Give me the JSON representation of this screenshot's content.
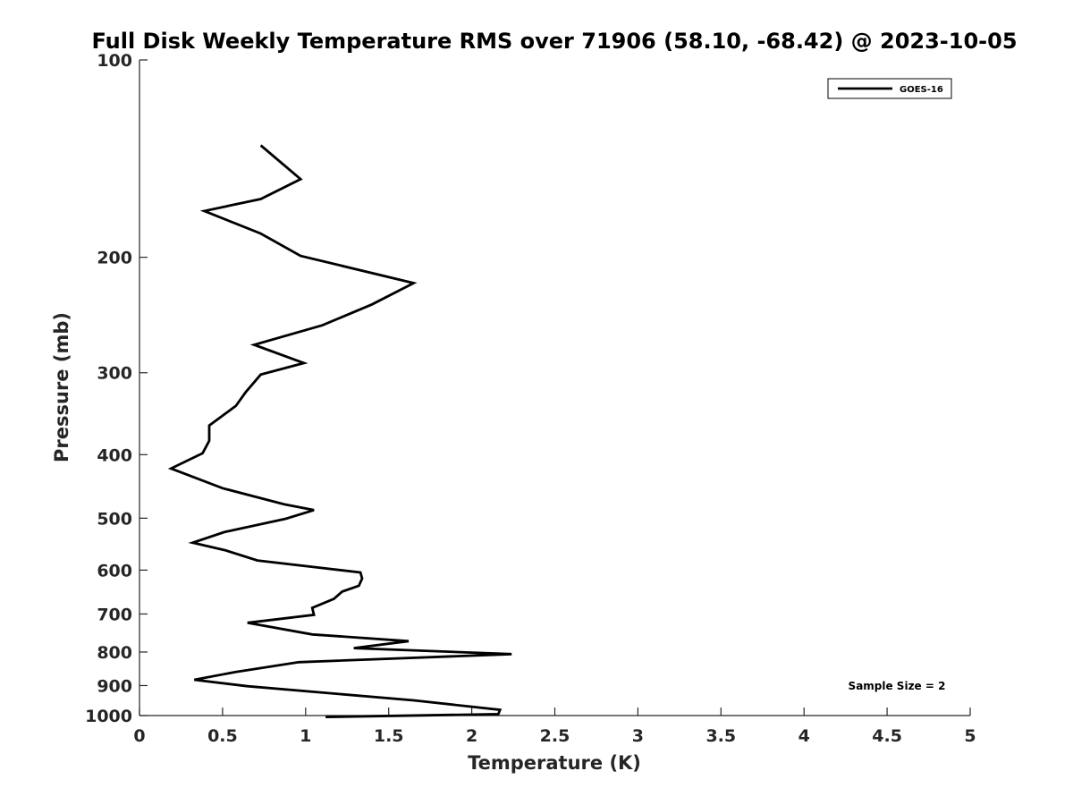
{
  "chart_data": {
    "type": "line",
    "title": "Full Disk Weekly Temperature RMS over 71906 (58.10, -68.42) @ 2023-10-05",
    "xlabel": "Temperature (K)",
    "ylabel": "Pressure (mb)",
    "xlim": [
      0,
      5
    ],
    "ylim": [
      100,
      1000
    ],
    "yscale": "log",
    "y_reversed": true,
    "xticks": [
      0,
      0.5,
      1,
      1.5,
      2,
      2.5,
      3,
      3.5,
      4,
      4.5,
      5
    ],
    "xtick_labels": [
      "0",
      "0.5",
      "1",
      "1.5",
      "2",
      "2.5",
      "3",
      "3.5",
      "4",
      "4.5",
      "5"
    ],
    "yticks": [
      100,
      200,
      300,
      400,
      500,
      600,
      700,
      800,
      900,
      1000
    ],
    "ytick_labels": [
      "100",
      "200",
      "300",
      "400",
      "500",
      "600",
      "700",
      "800",
      "900",
      "1000"
    ],
    "grid": false,
    "legend_position": "top-right",
    "annotation": "Sample Size = 2",
    "series": [
      {
        "name": "GOES-16",
        "color": "#000000",
        "x": [
          0.73,
          0.97,
          0.73,
          0.39,
          0.73,
          0.97,
          1.65,
          1.4,
          1.1,
          0.69,
          0.99,
          0.73,
          0.64,
          0.58,
          0.42,
          0.42,
          0.38,
          0.19,
          0.5,
          0.87,
          1.05,
          0.88,
          0.51,
          0.32,
          0.52,
          0.71,
          1.33,
          1.34,
          1.32,
          1.22,
          1.17,
          1.04,
          1.05,
          0.65,
          1.04,
          1.62,
          1.29,
          2.24,
          0.96,
          0.58,
          0.33,
          0.65,
          1.65,
          2.17,
          2.16,
          1.12
        ],
        "y": [
          135,
          152,
          163,
          170,
          184,
          199,
          219,
          236,
          254,
          272,
          290,
          302,
          321,
          337,
          361,
          381,
          398,
          420,
          450,
          476,
          486,
          501,
          525,
          545,
          560,
          580,
          605,
          618,
          634,
          647,
          664,
          685,
          702,
          722,
          752,
          770,
          789,
          806,
          829,
          858,
          882,
          902,
          948,
          980,
          995,
          1005
        ]
      }
    ]
  }
}
